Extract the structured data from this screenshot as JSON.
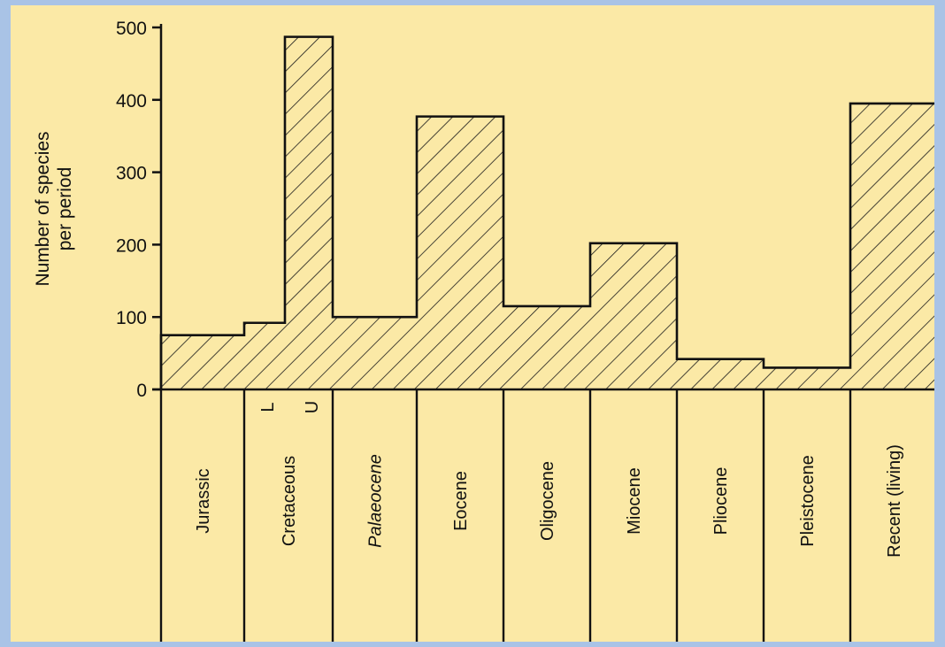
{
  "chart_data": {
    "type": "bar",
    "title": "",
    "xlabel": "",
    "ylabel": [
      "Number of species",
      "per period"
    ],
    "ylim": [
      0,
      500
    ],
    "yticks": [
      0,
      100,
      200,
      300,
      400,
      500
    ],
    "grid": false,
    "legend": "none",
    "categories": [
      "Jurassic",
      "Cretaceous L",
      "Cretaceous U",
      "Palaeocene",
      "Eocene",
      "Oligocene",
      "Miocene",
      "Pliocene",
      "Pleistocene",
      "Recent (living)"
    ],
    "values": [
      75,
      92,
      487,
      100,
      377,
      115,
      202,
      42,
      30,
      395
    ],
    "periods": [
      "Jurassic",
      "Cretaceous",
      "Palaeocene",
      "Eocene",
      "Oligocene",
      "Miocene",
      "Pliocene",
      "Pleistocene",
      "Recent (living)"
    ],
    "subdivisions": [
      "L",
      "U"
    ],
    "style": {
      "hatch_color": "#1a1a1a",
      "background": "#fbe9a6"
    }
  }
}
